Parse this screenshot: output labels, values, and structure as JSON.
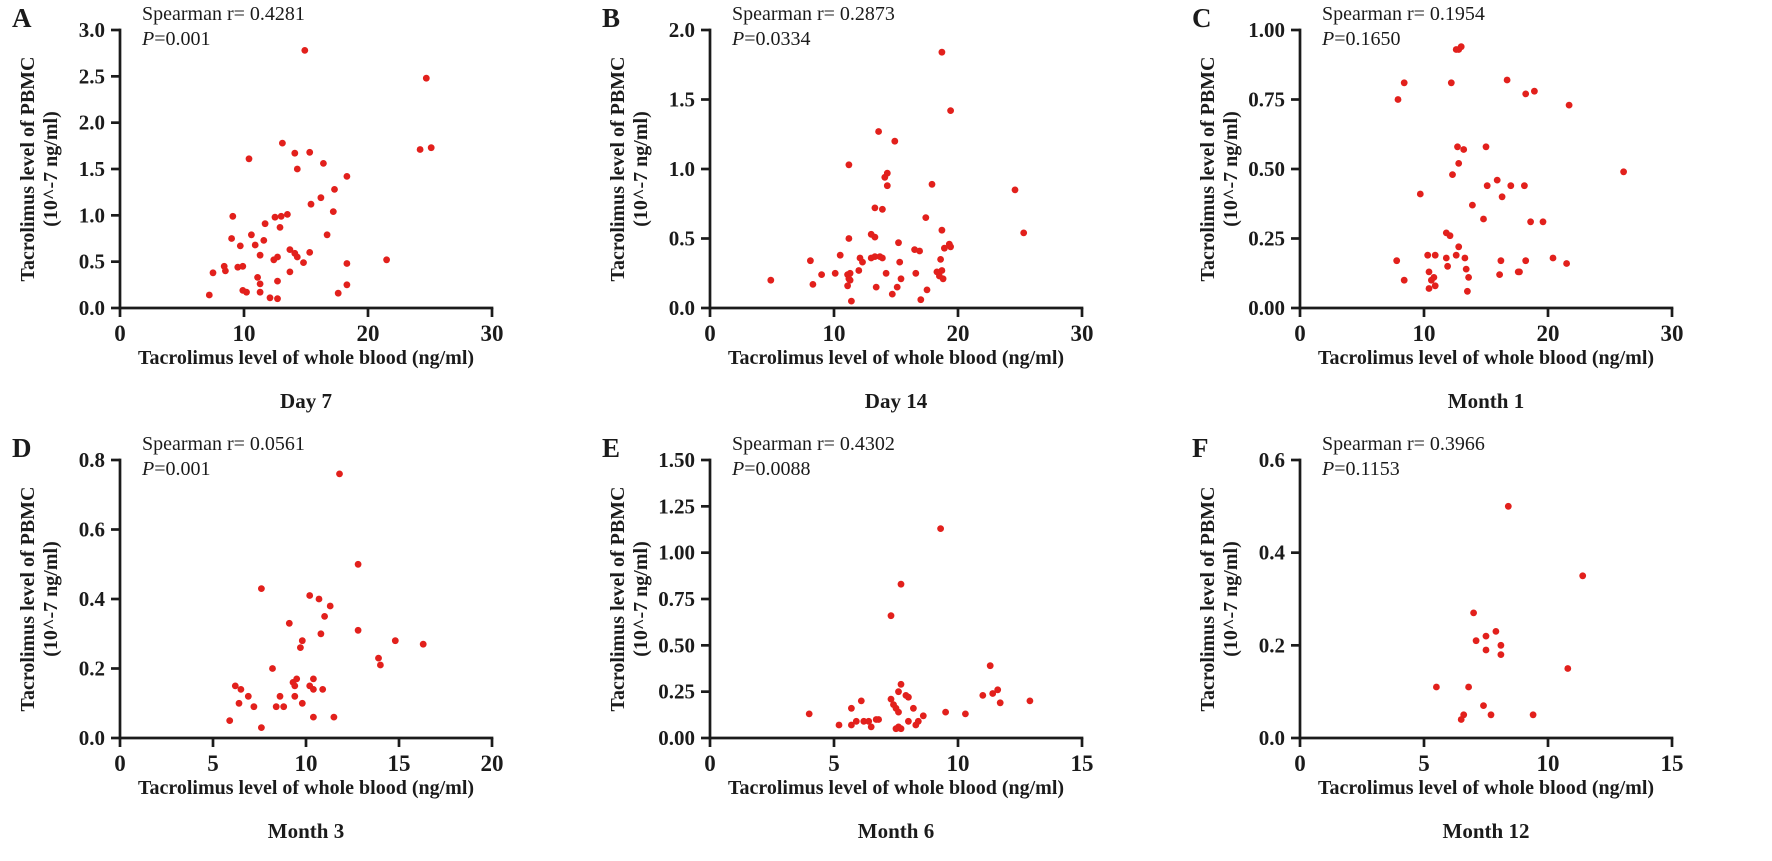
{
  "figure": {
    "background": "#ffffff",
    "dot_color": "#e2201c",
    "axis_color": "#1b1b1b",
    "shared_xlabel": "Tacrolimus level of whole blood (ng/ml)",
    "ylabel_line1": "Tacrolimus level of PBMC",
    "ylabel_line2": "(10^-7 ng/ml)"
  },
  "chart_data": [
    {
      "type": "scatter",
      "panel_label": "A",
      "title": "Day 7",
      "spearman_r": 0.4281,
      "annotation": {
        "r": "Spearman r= 0.4281",
        "p_var": "P",
        "p_rest": "=0.001"
      },
      "xlabel": "Tacrolimus level of whole blood (ng/ml)",
      "ylabel": "Tacrolimus level of PBMC (10^-7 ng/ml)",
      "xlim": [
        0,
        30
      ],
      "ylim": [
        0,
        3.0
      ],
      "x_tick_labels": [
        "0",
        "10",
        "20",
        "30"
      ],
      "y_tick_labels": [
        "0.0",
        "0.5",
        "1.0",
        "1.5",
        "2.0",
        "2.5",
        "3.0"
      ],
      "grid": false,
      "legend": false,
      "points": [
        [
          14.9,
          2.78
        ],
        [
          24.7,
          2.48
        ],
        [
          13.1,
          1.78
        ],
        [
          25.1,
          1.73
        ],
        [
          24.2,
          1.71
        ],
        [
          15.3,
          1.68
        ],
        [
          14.1,
          1.67
        ],
        [
          10.4,
          1.61
        ],
        [
          16.4,
          1.56
        ],
        [
          14.3,
          1.5
        ],
        [
          18.3,
          1.42
        ],
        [
          17.3,
          1.28
        ],
        [
          16.2,
          1.19
        ],
        [
          15.4,
          1.12
        ],
        [
          17.2,
          1.04
        ],
        [
          13.5,
          1.01
        ],
        [
          9.1,
          0.99
        ],
        [
          13.0,
          0.99
        ],
        [
          12.5,
          0.98
        ],
        [
          11.7,
          0.91
        ],
        [
          12.9,
          0.87
        ],
        [
          16.7,
          0.79
        ],
        [
          10.6,
          0.79
        ],
        [
          9.0,
          0.75
        ],
        [
          11.6,
          0.73
        ],
        [
          10.9,
          0.68
        ],
        [
          9.7,
          0.67
        ],
        [
          13.7,
          0.63
        ],
        [
          15.3,
          0.6
        ],
        [
          14.1,
          0.59
        ],
        [
          11.3,
          0.57
        ],
        [
          12.7,
          0.55
        ],
        [
          14.3,
          0.55
        ],
        [
          12.4,
          0.52
        ],
        [
          21.5,
          0.52
        ],
        [
          14.8,
          0.49
        ],
        [
          18.3,
          0.48
        ],
        [
          9.9,
          0.45
        ],
        [
          8.4,
          0.45
        ],
        [
          9.5,
          0.44
        ],
        [
          8.5,
          0.4
        ],
        [
          13.7,
          0.39
        ],
        [
          7.5,
          0.38
        ],
        [
          11.1,
          0.33
        ],
        [
          12.7,
          0.29
        ],
        [
          11.3,
          0.26
        ],
        [
          18.3,
          0.25
        ],
        [
          9.9,
          0.19
        ],
        [
          10.2,
          0.17
        ],
        [
          11.3,
          0.17
        ],
        [
          17.6,
          0.16
        ],
        [
          7.2,
          0.14
        ],
        [
          12.1,
          0.11
        ],
        [
          12.7,
          0.1
        ]
      ]
    },
    {
      "type": "scatter",
      "panel_label": "B",
      "title": "Day 14",
      "spearman_r": 0.2873,
      "annotation": {
        "r": "Spearman r= 0.2873",
        "p_var": "P",
        "p_rest": "=0.0334"
      },
      "xlabel": "Tacrolimus level of whole blood (ng/ml)",
      "ylabel": "Tacrolimus level of PBMC (10^-7 ng/ml)",
      "xlim": [
        0,
        30
      ],
      "ylim": [
        0,
        2.0
      ],
      "x_tick_labels": [
        "0",
        "10",
        "20",
        "30"
      ],
      "y_tick_labels": [
        "0.0",
        "0.5",
        "1.0",
        "1.5",
        "2.0"
      ],
      "grid": false,
      "legend": false,
      "points": [
        [
          18.7,
          1.84
        ],
        [
          19.4,
          1.42
        ],
        [
          13.6,
          1.27
        ],
        [
          14.9,
          1.2
        ],
        [
          11.2,
          1.03
        ],
        [
          14.3,
          0.97
        ],
        [
          14.1,
          0.94
        ],
        [
          17.9,
          0.89
        ],
        [
          14.3,
          0.88
        ],
        [
          24.6,
          0.85
        ],
        [
          13.3,
          0.72
        ],
        [
          13.9,
          0.71
        ],
        [
          17.4,
          0.65
        ],
        [
          18.7,
          0.56
        ],
        [
          25.3,
          0.54
        ],
        [
          13.0,
          0.53
        ],
        [
          13.3,
          0.51
        ],
        [
          11.2,
          0.5
        ],
        [
          15.2,
          0.47
        ],
        [
          19.3,
          0.46
        ],
        [
          19.4,
          0.44
        ],
        [
          18.9,
          0.43
        ],
        [
          16.5,
          0.42
        ],
        [
          16.9,
          0.41
        ],
        [
          10.5,
          0.38
        ],
        [
          13.3,
          0.37
        ],
        [
          13.7,
          0.37
        ],
        [
          12.1,
          0.36
        ],
        [
          13.0,
          0.36
        ],
        [
          13.9,
          0.36
        ],
        [
          18.6,
          0.35
        ],
        [
          8.1,
          0.34
        ],
        [
          12.3,
          0.33
        ],
        [
          15.3,
          0.33
        ],
        [
          12.0,
          0.27
        ],
        [
          18.7,
          0.27
        ],
        [
          18.3,
          0.26
        ],
        [
          11.3,
          0.25
        ],
        [
          10.1,
          0.25
        ],
        [
          14.2,
          0.25
        ],
        [
          16.6,
          0.25
        ],
        [
          9.0,
          0.24
        ],
        [
          11.1,
          0.24
        ],
        [
          18.5,
          0.23
        ],
        [
          11.2,
          0.21
        ],
        [
          15.4,
          0.21
        ],
        [
          18.8,
          0.21
        ],
        [
          4.9,
          0.2
        ],
        [
          11.3,
          0.2
        ],
        [
          8.3,
          0.17
        ],
        [
          11.1,
          0.16
        ],
        [
          13.4,
          0.15
        ],
        [
          15.1,
          0.15
        ],
        [
          17.5,
          0.13
        ],
        [
          14.7,
          0.1
        ],
        [
          17.0,
          0.06
        ],
        [
          11.4,
          0.05
        ]
      ]
    },
    {
      "type": "scatter",
      "panel_label": "C",
      "title": "Month 1",
      "spearman_r": 0.1954,
      "annotation": {
        "r": "Spearman r= 0.1954",
        "p_var": "P",
        "p_rest": "=0.1650"
      },
      "xlabel": "Tacrolimus level of whole blood (ng/ml)",
      "ylabel": "Tacrolimus level of PBMC (10^-7 ng/ml)",
      "xlim": [
        0,
        30
      ],
      "ylim": [
        0,
        1.0
      ],
      "x_tick_labels": [
        "0",
        "10",
        "20",
        "30"
      ],
      "y_tick_labels": [
        "0.00",
        "0.25",
        "0.50",
        "0.75",
        "1.00"
      ],
      "grid": false,
      "legend": false,
      "points": [
        [
          13.0,
          0.94
        ],
        [
          12.8,
          0.93
        ],
        [
          12.6,
          0.93
        ],
        [
          16.7,
          0.82
        ],
        [
          8.4,
          0.81
        ],
        [
          12.2,
          0.81
        ],
        [
          18.9,
          0.78
        ],
        [
          18.2,
          0.77
        ],
        [
          7.9,
          0.75
        ],
        [
          21.7,
          0.73
        ],
        [
          12.7,
          0.58
        ],
        [
          15.0,
          0.58
        ],
        [
          13.2,
          0.57
        ],
        [
          12.8,
          0.52
        ],
        [
          26.1,
          0.49
        ],
        [
          12.3,
          0.48
        ],
        [
          15.9,
          0.46
        ],
        [
          15.1,
          0.44
        ],
        [
          17.0,
          0.44
        ],
        [
          18.1,
          0.44
        ],
        [
          9.7,
          0.41
        ],
        [
          16.3,
          0.4
        ],
        [
          13.9,
          0.37
        ],
        [
          14.8,
          0.32
        ],
        [
          18.6,
          0.31
        ],
        [
          19.6,
          0.31
        ],
        [
          11.8,
          0.27
        ],
        [
          12.1,
          0.26
        ],
        [
          12.8,
          0.22
        ],
        [
          10.3,
          0.19
        ],
        [
          10.9,
          0.19
        ],
        [
          12.6,
          0.19
        ],
        [
          11.8,
          0.18
        ],
        [
          13.3,
          0.18
        ],
        [
          20.4,
          0.18
        ],
        [
          7.8,
          0.17
        ],
        [
          16.2,
          0.17
        ],
        [
          18.2,
          0.17
        ],
        [
          21.5,
          0.16
        ],
        [
          11.9,
          0.15
        ],
        [
          13.4,
          0.14
        ],
        [
          10.4,
          0.13
        ],
        [
          17.6,
          0.13
        ],
        [
          17.7,
          0.13
        ],
        [
          16.1,
          0.12
        ],
        [
          10.8,
          0.11
        ],
        [
          13.6,
          0.11
        ],
        [
          10.6,
          0.1
        ],
        [
          8.4,
          0.1
        ],
        [
          10.9,
          0.08
        ],
        [
          10.4,
          0.07
        ],
        [
          13.5,
          0.06
        ]
      ]
    },
    {
      "type": "scatter",
      "panel_label": "D",
      "title": "Month 3",
      "spearman_r": 0.0561,
      "annotation": {
        "r": "Spearman r= 0.0561",
        "p_var": "P",
        "p_rest": "=0.001"
      },
      "xlabel": "Tacrolimus level of whole blood (ng/ml)",
      "ylabel": "Tacrolimus level of PBMC (10^-7 ng/ml)",
      "xlim": [
        0,
        20
      ],
      "ylim": [
        0,
        0.8
      ],
      "x_tick_labels": [
        "0",
        "5",
        "10",
        "15",
        "20"
      ],
      "y_tick_labels": [
        "0.0",
        "0.2",
        "0.4",
        "0.6",
        "0.8"
      ],
      "grid": false,
      "legend": false,
      "points": [
        [
          11.8,
          0.76
        ],
        [
          12.8,
          0.5
        ],
        [
          7.6,
          0.43
        ],
        [
          10.2,
          0.41
        ],
        [
          10.7,
          0.4
        ],
        [
          11.3,
          0.38
        ],
        [
          11.0,
          0.35
        ],
        [
          9.1,
          0.33
        ],
        [
          12.8,
          0.31
        ],
        [
          10.8,
          0.3
        ],
        [
          9.8,
          0.28
        ],
        [
          14.8,
          0.28
        ],
        [
          16.3,
          0.27
        ],
        [
          9.7,
          0.26
        ],
        [
          13.9,
          0.23
        ],
        [
          14.0,
          0.21
        ],
        [
          8.2,
          0.2
        ],
        [
          9.5,
          0.17
        ],
        [
          10.4,
          0.17
        ],
        [
          9.3,
          0.16
        ],
        [
          6.2,
          0.15
        ],
        [
          9.4,
          0.15
        ],
        [
          10.2,
          0.15
        ],
        [
          6.5,
          0.14
        ],
        [
          10.4,
          0.14
        ],
        [
          10.9,
          0.14
        ],
        [
          6.9,
          0.12
        ],
        [
          8.6,
          0.12
        ],
        [
          9.4,
          0.12
        ],
        [
          6.4,
          0.1
        ],
        [
          9.8,
          0.1
        ],
        [
          7.2,
          0.09
        ],
        [
          8.4,
          0.09
        ],
        [
          8.8,
          0.09
        ],
        [
          11.5,
          0.06
        ],
        [
          10.4,
          0.06
        ],
        [
          5.9,
          0.05
        ],
        [
          7.6,
          0.03
        ]
      ]
    },
    {
      "type": "scatter",
      "panel_label": "E",
      "title": "Month 6",
      "spearman_r": 0.4302,
      "annotation": {
        "r": "Spearman r= 0.4302",
        "p_var": "P",
        "p_rest": "=0.0088"
      },
      "xlabel": "Tacrolimus level of whole blood (ng/ml)",
      "ylabel": "Tacrolimus level of PBMC (10^-7 ng/ml)",
      "xlim": [
        0,
        15
      ],
      "ylim": [
        0,
        1.5
      ],
      "x_tick_labels": [
        "0",
        "5",
        "10",
        "15"
      ],
      "y_tick_labels": [
        "0.00",
        "0.25",
        "0.50",
        "0.75",
        "1.00",
        "1.25",
        "1.50"
      ],
      "grid": false,
      "legend": false,
      "points": [
        [
          9.3,
          1.13
        ],
        [
          7.7,
          0.83
        ],
        [
          7.3,
          0.66
        ],
        [
          11.3,
          0.39
        ],
        [
          7.7,
          0.29
        ],
        [
          11.6,
          0.26
        ],
        [
          7.6,
          0.25
        ],
        [
          11.4,
          0.24
        ],
        [
          7.9,
          0.23
        ],
        [
          11.0,
          0.23
        ],
        [
          8.0,
          0.22
        ],
        [
          7.3,
          0.21
        ],
        [
          6.1,
          0.2
        ],
        [
          12.9,
          0.2
        ],
        [
          11.7,
          0.19
        ],
        [
          7.4,
          0.18
        ],
        [
          5.7,
          0.16
        ],
        [
          7.5,
          0.16
        ],
        [
          8.2,
          0.16
        ],
        [
          7.6,
          0.14
        ],
        [
          9.5,
          0.14
        ],
        [
          4.0,
          0.13
        ],
        [
          10.3,
          0.13
        ],
        [
          8.6,
          0.12
        ],
        [
          6.7,
          0.1
        ],
        [
          6.8,
          0.1
        ],
        [
          5.9,
          0.09
        ],
        [
          6.2,
          0.09
        ],
        [
          6.4,
          0.09
        ],
        [
          8.0,
          0.09
        ],
        [
          8.4,
          0.09
        ],
        [
          5.2,
          0.07
        ],
        [
          5.7,
          0.07
        ],
        [
          8.3,
          0.07
        ],
        [
          6.5,
          0.06
        ],
        [
          7.6,
          0.06
        ],
        [
          7.5,
          0.05
        ],
        [
          7.7,
          0.05
        ]
      ]
    },
    {
      "type": "scatter",
      "panel_label": "F",
      "title": "Month 12",
      "spearman_r": 0.3966,
      "annotation": {
        "r": "Spearman r= 0.3966",
        "p_var": "P",
        "p_rest": "=0.1153"
      },
      "xlabel": "Tacrolimus level of whole blood (ng/ml)",
      "ylabel": "Tacrolimus level of PBMC (10^-7 ng/ml)",
      "xlim": [
        0,
        15
      ],
      "ylim": [
        0,
        0.6
      ],
      "x_tick_labels": [
        "0",
        "5",
        "10",
        "15"
      ],
      "y_tick_labels": [
        "0.0",
        "0.2",
        "0.4",
        "0.6"
      ],
      "grid": false,
      "legend": false,
      "points": [
        [
          8.4,
          0.5
        ],
        [
          11.4,
          0.35
        ],
        [
          7.0,
          0.27
        ],
        [
          7.9,
          0.23
        ],
        [
          7.5,
          0.22
        ],
        [
          7.1,
          0.21
        ],
        [
          8.1,
          0.2
        ],
        [
          7.5,
          0.19
        ],
        [
          8.1,
          0.18
        ],
        [
          10.8,
          0.15
        ],
        [
          5.5,
          0.11
        ],
        [
          6.8,
          0.11
        ],
        [
          7.4,
          0.07
        ],
        [
          6.6,
          0.05
        ],
        [
          7.7,
          0.05
        ],
        [
          9.4,
          0.05
        ],
        [
          6.5,
          0.04
        ]
      ]
    }
  ]
}
